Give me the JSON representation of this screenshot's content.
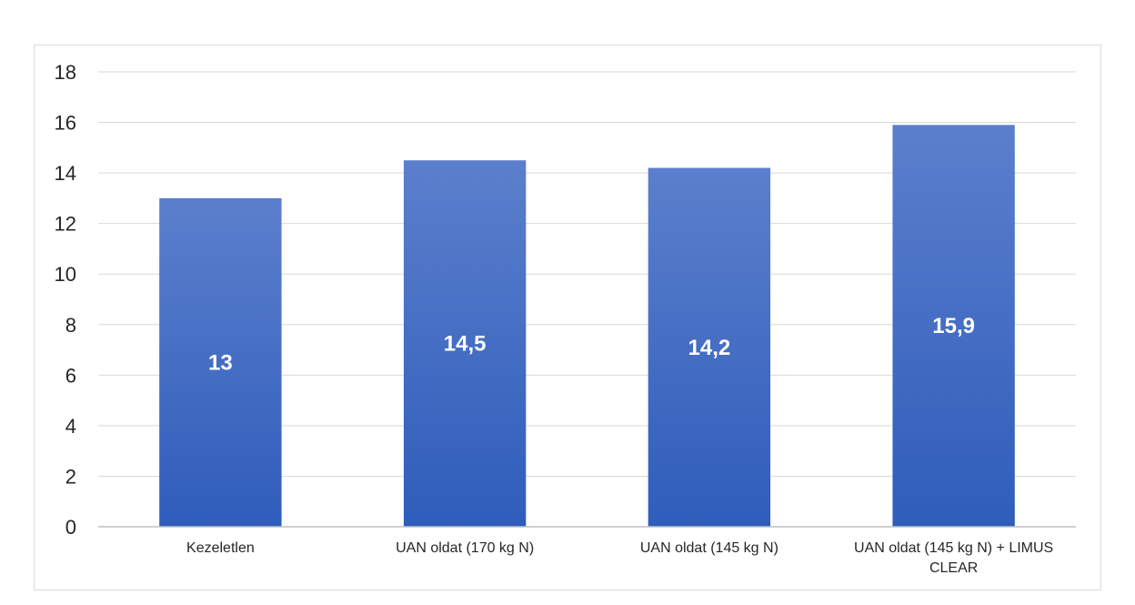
{
  "chart_data": {
    "type": "bar",
    "categories": [
      "Kezeletlen",
      "UAN oldat (170 kg N)",
      "UAN oldat (145 kg N)",
      "UAN oldat (145 kg N) + LIMUS CLEAR"
    ],
    "category_lines": [
      [
        "Kezeletlen"
      ],
      [
        "UAN oldat (170 kg N)"
      ],
      [
        "UAN oldat (145 kg N)"
      ],
      [
        "UAN oldat (145 kg N) + LIMUS",
        "CLEAR"
      ]
    ],
    "values": [
      13,
      14.5,
      14.2,
      15.9
    ],
    "data_labels": [
      "13",
      "14,5",
      "14,2",
      "15,9"
    ],
    "ylim": [
      0,
      18
    ],
    "yticks": [
      0,
      2,
      4,
      6,
      8,
      10,
      12,
      14,
      16,
      18
    ],
    "grid": true,
    "legend": "none",
    "colors": {
      "bar_top": "#5b7fcc",
      "bar_bottom": "#2f5dbb",
      "grid": "#d9d9d9",
      "axis": "#bfbfbf"
    }
  }
}
